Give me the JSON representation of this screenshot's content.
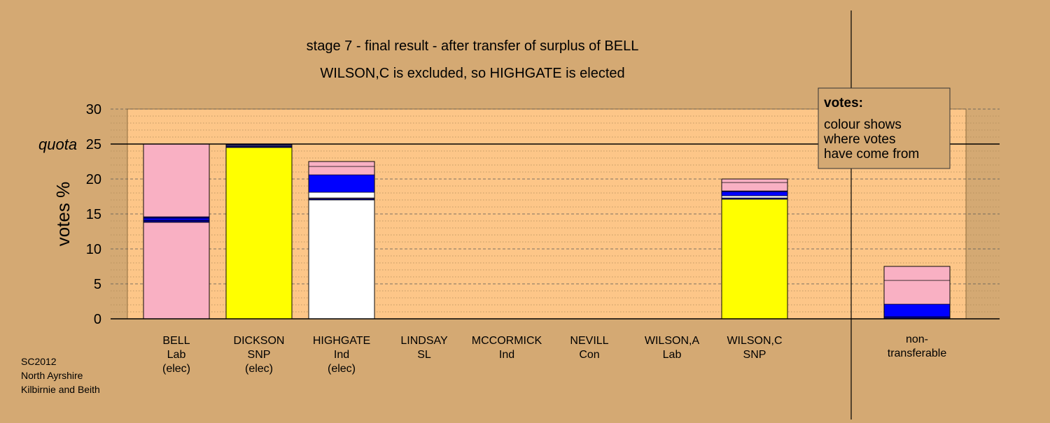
{
  "chart_data": {
    "type": "bar",
    "title": "stage 7 - final result - after transfer of surplus of BELL",
    "subtitle": "WILSON,C is excluded, so HIGHGATE is elected",
    "ylabel": "votes %",
    "ylim": [
      0,
      30
    ],
    "yticks": [
      0,
      5,
      10,
      15,
      20,
      25,
      30
    ],
    "quota": {
      "label": "quota",
      "value": 25
    },
    "grid": true,
    "legend": {
      "position": "top-right",
      "title": "votes:",
      "lines": [
        "colour shows",
        "where votes",
        "have come from"
      ]
    },
    "colors": {
      "Lab": "#f9b0c3",
      "SNP": "#ffff00",
      "Ind": "#ffffff",
      "SL": "#0000ff",
      "other": "#000080"
    },
    "candidates": [
      {
        "name": "BELL",
        "party": "Lab",
        "status": "(elec)",
        "total": 25.0,
        "segments": [
          {
            "from": "Lab",
            "value": 13.8
          },
          {
            "from": "other",
            "value": 0.3
          },
          {
            "from": "SL",
            "value": 0.3
          },
          {
            "from": "other",
            "value": 0.2
          },
          {
            "from": "Lab",
            "value": 10.4
          }
        ]
      },
      {
        "name": "DICKSON",
        "party": "SNP",
        "status": "(elec)",
        "total": 25.0,
        "segments": [
          {
            "from": "SNP",
            "value": 24.5
          },
          {
            "from": "other",
            "value": 0.2
          },
          {
            "from": "Ind",
            "value": 0.1
          },
          {
            "from": "other",
            "value": 0.2
          }
        ]
      },
      {
        "name": "HIGHGATE",
        "party": "Ind",
        "status": "(elec)",
        "total": 22.5,
        "segments": [
          {
            "from": "Ind",
            "value": 17.0
          },
          {
            "from": "other",
            "value": 0.2
          },
          {
            "from": "Lab",
            "value": 0.1
          },
          {
            "from": "Ind",
            "value": 0.8
          },
          {
            "from": "SL",
            "value": 2.5
          },
          {
            "from": "Lab",
            "value": 1.2
          },
          {
            "from": "Lab",
            "value": 0.7
          }
        ]
      },
      {
        "name": "LINDSAY",
        "party": "SL",
        "status": "",
        "total": 0,
        "segments": []
      },
      {
        "name": "MCCORMICK",
        "party": "Ind",
        "status": "",
        "total": 0,
        "segments": []
      },
      {
        "name": "NEVILL",
        "party": "Con",
        "status": "",
        "total": 0,
        "segments": []
      },
      {
        "name": "WILSON,A",
        "party": "Lab",
        "status": "",
        "total": 0,
        "segments": []
      },
      {
        "name": "WILSON,C",
        "party": "SNP",
        "status": "",
        "total": 20.0,
        "segments": [
          {
            "from": "SNP",
            "value": 17.1
          },
          {
            "from": "other",
            "value": 0.2
          },
          {
            "from": "Ind",
            "value": 0.3
          },
          {
            "from": "SL",
            "value": 0.6
          },
          {
            "from": "other",
            "value": 0.1
          },
          {
            "from": "Lab",
            "value": 1.2
          },
          {
            "from": "Lab",
            "value": 0.5
          }
        ]
      }
    ],
    "nontransferable": {
      "label_lines": [
        "non-",
        "transferable"
      ],
      "total": 7.5,
      "segments": [
        {
          "from": "other",
          "value": 0.3
        },
        {
          "from": "SL",
          "value": 1.8
        },
        {
          "from": "Lab",
          "value": 3.4
        },
        {
          "from": "Lab",
          "value": 2.0
        }
      ]
    }
  },
  "footer": {
    "lines": [
      "SC2012",
      "North Ayrshire",
      "Kilbirnie and Beith"
    ]
  }
}
